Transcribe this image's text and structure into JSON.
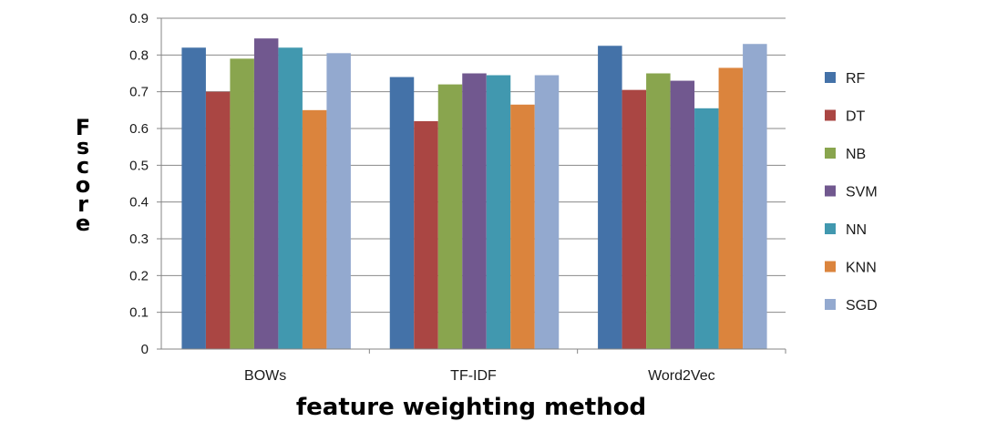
{
  "chart_data": {
    "type": "bar",
    "title": "",
    "xlabel": "feature weighting method",
    "ylabel": "F score",
    "ylim": [
      0,
      0.9
    ],
    "yticks": [
      "0",
      "0.1",
      "0.2",
      "0.3",
      "0.4",
      "0.5",
      "0.6",
      "0.7",
      "0.8",
      "0.9"
    ],
    "categories": [
      "BOWs",
      "TF-IDF",
      "Word2Vec"
    ],
    "grid": true,
    "legend_position": "right",
    "series": [
      {
        "name": "RF",
        "color": "#4472A8",
        "values": [
          0.82,
          0.74,
          0.825
        ]
      },
      {
        "name": "DT",
        "color": "#AA4643",
        "values": [
          0.7,
          0.62,
          0.705
        ]
      },
      {
        "name": "NB",
        "color": "#89A54E",
        "values": [
          0.79,
          0.72,
          0.75
        ]
      },
      {
        "name": "SVM",
        "color": "#71588F",
        "values": [
          0.845,
          0.75,
          0.73
        ]
      },
      {
        "name": "NN",
        "color": "#4198AF",
        "values": [
          0.82,
          0.745,
          0.655
        ]
      },
      {
        "name": "KNN",
        "color": "#DB843D",
        "values": [
          0.65,
          0.665,
          0.765
        ]
      },
      {
        "name": "SGD",
        "color": "#93A9CF",
        "values": [
          0.805,
          0.745,
          0.83
        ]
      }
    ]
  }
}
